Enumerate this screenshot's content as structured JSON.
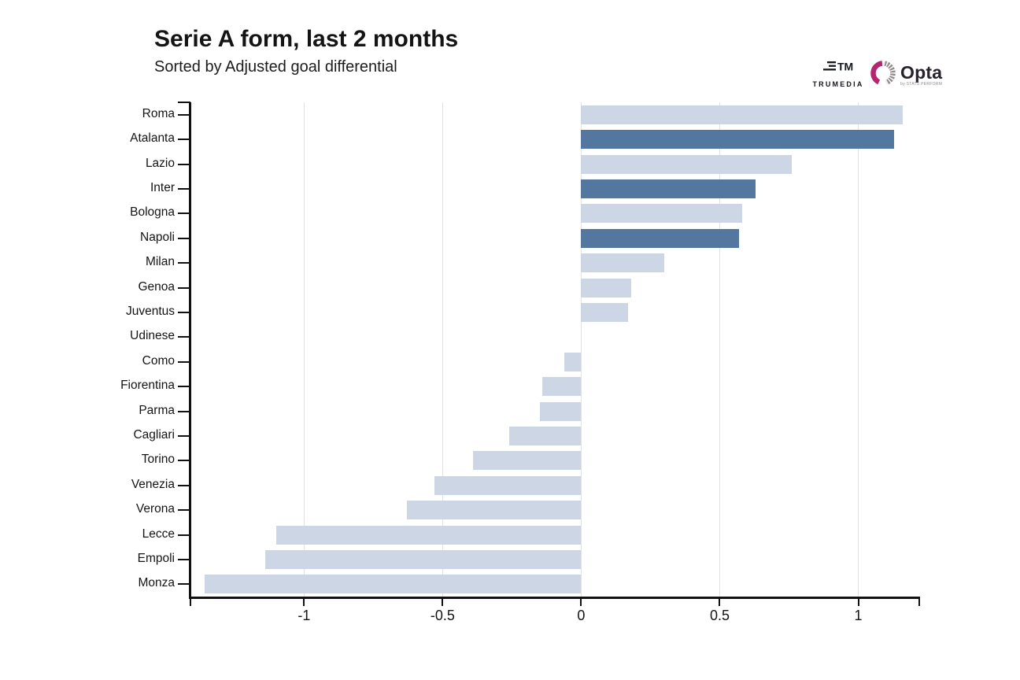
{
  "header": {
    "title": "Serie A form, last 2 months",
    "subtitle": "Sorted by Adjusted goal differential"
  },
  "logos": {
    "trumedia": {
      "label": "TRUMEDIA",
      "monogram": "TM"
    },
    "opta": {
      "label": "Opta",
      "sublabel": "by STATS PERFORM"
    }
  },
  "colors": {
    "bar_default": "#ccd6e4",
    "bar_highlight": "#54779f",
    "gridline": "#e2e2e2",
    "axis": "#111111",
    "opta_magenta": "#b2276f",
    "opta_gray": "#938a8c"
  },
  "chart_data": {
    "type": "bar",
    "orientation": "horizontal",
    "title": "Serie A form, last 2 months",
    "subtitle": "Sorted by Adjusted goal differential",
    "xlabel": "",
    "ylabel": "",
    "xlim": [
      -1.41,
      1.22
    ],
    "x_ticks": [
      -1,
      -0.5,
      0,
      0.5,
      1
    ],
    "x_tick_labels": [
      "-1",
      "-0.5",
      "0",
      "0.5",
      "1"
    ],
    "grid": true,
    "legend": false,
    "categories": [
      "Roma",
      "Atalanta",
      "Lazio",
      "Inter",
      "Bologna",
      "Napoli",
      "Milan",
      "Genoa",
      "Juventus",
      "Udinese",
      "Como",
      "Fiorentina",
      "Parma",
      "Cagliari",
      "Torino",
      "Venezia",
      "Verona",
      "Lecce",
      "Empoli",
      "Monza"
    ],
    "values": [
      1.16,
      1.13,
      0.76,
      0.63,
      0.58,
      0.57,
      0.3,
      0.18,
      0.17,
      0.0,
      -0.06,
      -0.14,
      -0.15,
      -0.26,
      -0.39,
      -0.53,
      -0.63,
      -1.1,
      -1.14,
      -1.36
    ],
    "highlighted": [
      "Atalanta",
      "Inter",
      "Napoli"
    ]
  }
}
